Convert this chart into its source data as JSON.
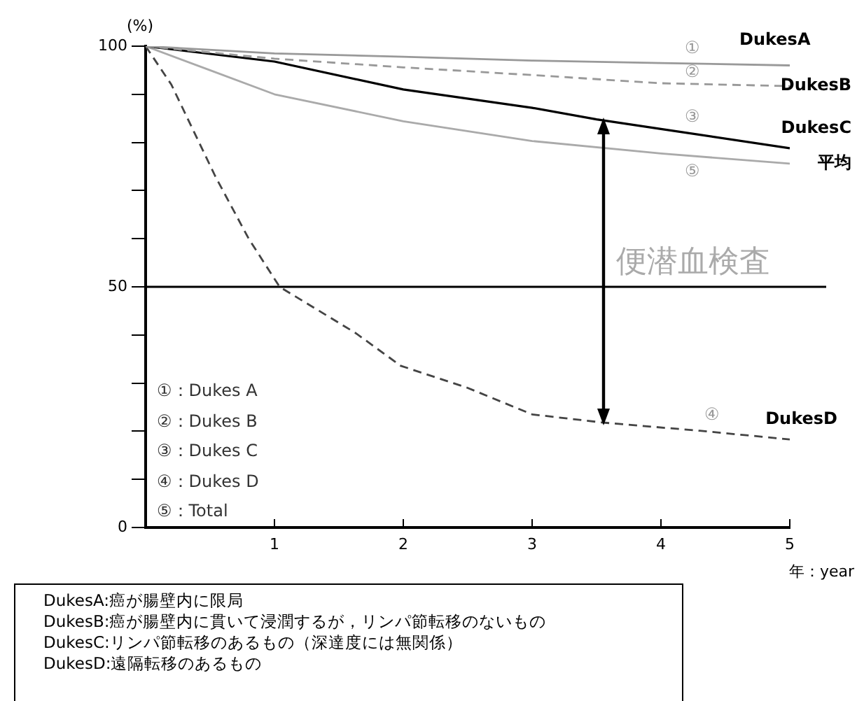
{
  "chart_data": {
    "type": "line",
    "xlabel": "年：year",
    "ylabel": "(%)",
    "xlim": [
      0,
      5
    ],
    "xticks": [
      1,
      2,
      3,
      4,
      5
    ],
    "ylim": [
      0,
      100
    ],
    "yticks": [
      0,
      {
        "value": 10,
        "label": null
      },
      {
        "value": 20,
        "label": null
      },
      {
        "value": 30,
        "label": null
      },
      {
        "value": 40,
        "label": null
      },
      50,
      {
        "value": 60,
        "label": null
      },
      {
        "value": 70,
        "label": null
      },
      {
        "value": 80,
        "label": null
      },
      {
        "value": 90,
        "label": null
      },
      100
    ],
    "grid": false,
    "legend": false,
    "marker": "none",
    "ref_lines": [
      {
        "axis": "y",
        "value": 50,
        "color": "#000000"
      }
    ],
    "series": [
      {
        "name": "DukesA",
        "color": "#999999",
        "line_style": "solid",
        "x": [
          0,
          1,
          2,
          3,
          4,
          5
        ],
        "values": [
          100,
          98.5,
          97.8,
          97,
          96.5,
          96
        ]
      },
      {
        "name": "DukesB",
        "color": "#999999",
        "line_style": "dashed",
        "x": [
          0,
          1,
          2,
          3,
          4,
          5
        ],
        "values": [
          100,
          97.4,
          95.6,
          94,
          92.3,
          91.7
        ]
      },
      {
        "name": "DukesC",
        "color": "#000000",
        "line_style": "solid",
        "x": [
          0,
          1,
          2,
          3,
          3.5,
          4,
          5
        ],
        "values": [
          100,
          96.8,
          91,
          87.2,
          84.8,
          82.8,
          78.8
        ]
      },
      {
        "name": "平均",
        "color": "#aaaaaa",
        "line_style": "solid",
        "x": [
          0,
          0.5,
          1,
          2,
          3,
          4,
          5
        ],
        "values": [
          100,
          95,
          90,
          84.4,
          80.3,
          77.7,
          75.6
        ]
      },
      {
        "name": "DukesD",
        "color": "#444444",
        "line_style": "dashed",
        "x": [
          0,
          0.2,
          0.54,
          0.8,
          1.04,
          1.63,
          1.98,
          2.5,
          3,
          3.55,
          4.3,
          5
        ],
        "values": [
          100,
          92,
          73,
          60,
          50,
          40.4,
          33.6,
          29,
          23.5,
          21.8,
          20.1,
          18.3
        ]
      }
    ],
    "annotations": [
      "①：Dukes A",
      "②：Dukes B",
      "③：Dukes C",
      "④：Dukes D",
      "⑤：Total",
      "便潜血検査",
      "DukesA:癌が腸壁内に限局",
      "DukesB:癌が腸壁内に貫いて浸潤するが，リンパ節転移のないもの",
      "DukesC:リンパ節転移のあるもの（深達度には無関係）",
      "DukesD:遠隔転移のあるもの",
      "①",
      "②",
      "③",
      "⑤",
      "④"
    ]
  }
}
